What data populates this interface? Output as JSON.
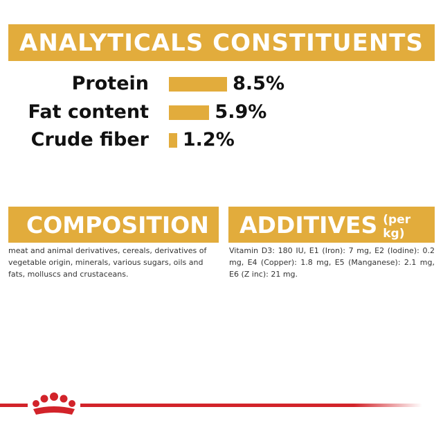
{
  "chart_data": {
    "type": "bar",
    "orientation": "horizontal",
    "title": "ANALYTICALS CONSTITUENTS",
    "categories": [
      "Protein",
      "Fat content",
      "Crude fiber"
    ],
    "values": [
      8.5,
      5.9,
      1.2
    ],
    "value_labels": [
      "8.5%",
      "5.9%",
      "1.2%"
    ],
    "color": "#e2ac3c"
  },
  "composition": {
    "title": "COMPOSITION",
    "text": "meat and animal derivatives, cereals, derivatives of vegetable origin, minerals, various sugars, oils and fats, molluscs and crustaceans."
  },
  "additives": {
    "title": "ADDITIVES",
    "subtitle": "(per kg)",
    "text": "Vitamin D3: 180 IU, E1 (Iron): 7 mg, E2 (Iodine): 0.2 mg, E4 (Copper): 1.8 mg, E5 (Manganese): 2.1 mg, E6 (Z inc): 21 mg."
  }
}
